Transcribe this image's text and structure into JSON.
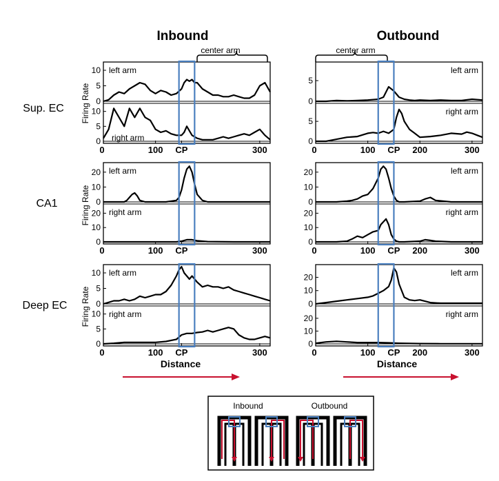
{
  "colors": {
    "trace": "#000000",
    "cp_box": "#4a7fbf",
    "arrow": "#c8102e",
    "path": "#c8102e",
    "maze": "#000000"
  },
  "columns": [
    {
      "title": "Inbound",
      "center_label": "center arm"
    },
    {
      "title": "Outbound",
      "center_label": "center arm"
    }
  ],
  "rows": [
    "Sup. EC",
    "CA1",
    "Deep EC"
  ],
  "y_axis_label": "Firing Rate",
  "x_axis_label": "Distance",
  "panel_labels": {
    "left": "left arm",
    "right": "right arm"
  },
  "x_ticks": [
    "0",
    "100",
    "CP",
    "200",
    "300"
  ],
  "inset": {
    "left_label": "Inbound",
    "right_label": "Outbound"
  },
  "chart_data": [
    {
      "type": "line",
      "row": "Sup. EC",
      "column": "Inbound",
      "xlim": [
        0,
        320
      ],
      "cp_box_x": [
        145,
        175
      ],
      "x_ticks": [
        0,
        100,
        150,
        300
      ],
      "subplots": [
        {
          "name": "left arm",
          "ylim": [
            0,
            12
          ],
          "yticks": [
            0,
            5,
            10
          ],
          "x": [
            0,
            10,
            20,
            30,
            40,
            50,
            60,
            70,
            80,
            90,
            100,
            110,
            120,
            130,
            140,
            150,
            155,
            160,
            165,
            170,
            175,
            180,
            190,
            200,
            210,
            220,
            230,
            240,
            250,
            260,
            270,
            280,
            290,
            300,
            310,
            320
          ],
          "y": [
            0,
            0.5,
            2,
            3,
            2.5,
            4,
            5,
            6,
            5.5,
            3.5,
            2.5,
            3.5,
            3,
            2,
            2.5,
            4,
            6,
            7,
            6.5,
            7,
            6,
            6,
            4,
            3,
            2,
            2,
            1.5,
            1.5,
            2,
            1.5,
            1,
            1,
            2,
            5,
            6,
            3
          ]
        },
        {
          "name": "right arm",
          "ylim": [
            0,
            12
          ],
          "yticks": [
            0,
            5,
            10
          ],
          "x": [
            0,
            10,
            20,
            30,
            40,
            50,
            60,
            70,
            80,
            90,
            100,
            110,
            120,
            130,
            140,
            150,
            155,
            160,
            170,
            180,
            190,
            200,
            210,
            220,
            230,
            240,
            250,
            260,
            270,
            280,
            290,
            300,
            310,
            320
          ],
          "y": [
            1,
            4,
            11,
            8,
            5,
            11,
            8,
            11,
            8,
            7,
            4,
            3,
            3.5,
            2.5,
            2,
            2,
            3,
            5,
            2,
            1,
            0.5,
            0.5,
            0.5,
            1,
            1.5,
            1,
            1.5,
            2,
            2.5,
            2,
            3,
            4,
            2,
            0.5
          ]
        }
      ]
    },
    {
      "type": "line",
      "row": "Sup. EC",
      "column": "Outbound",
      "xlim": [
        0,
        320
      ],
      "cp_box_x": [
        120,
        150
      ],
      "x_ticks": [
        0,
        100,
        150,
        200,
        300
      ],
      "subplots": [
        {
          "name": "left arm",
          "ylim": [
            0,
            9
          ],
          "yticks": [
            0,
            5
          ],
          "x": [
            0,
            20,
            40,
            60,
            80,
            100,
            120,
            130,
            140,
            150,
            160,
            170,
            180,
            190,
            200,
            220,
            240,
            260,
            280,
            300,
            320
          ],
          "y": [
            0,
            0,
            0.2,
            0.1,
            0.2,
            0.3,
            0.5,
            1,
            3.5,
            2.5,
            1,
            0.5,
            0.3,
            0.2,
            0.3,
            0.2,
            0.3,
            0.2,
            0.2,
            0.5,
            0.3
          ]
        },
        {
          "name": "right arm",
          "ylim": [
            0,
            9
          ],
          "yticks": [
            0,
            5
          ],
          "x": [
            0,
            20,
            40,
            60,
            80,
            100,
            110,
            120,
            130,
            140,
            150,
            155,
            160,
            165,
            170,
            180,
            190,
            200,
            220,
            240,
            260,
            280,
            290,
            300,
            310,
            320
          ],
          "y": [
            0,
            0,
            0.5,
            1,
            1.2,
            2,
            2.2,
            2,
            2.5,
            2,
            3,
            6,
            8,
            7,
            5,
            3,
            2,
            1,
            1.2,
            1.5,
            2,
            1.8,
            2.3,
            2,
            1.5,
            1
          ]
        }
      ]
    },
    {
      "type": "line",
      "row": "CA1",
      "column": "Inbound",
      "xlim": [
        0,
        320
      ],
      "cp_box_x": [
        145,
        175
      ],
      "x_ticks": [
        0,
        100,
        150,
        300
      ],
      "subplots": [
        {
          "name": "left arm",
          "ylim": [
            0,
            25
          ],
          "yticks": [
            0,
            10,
            20
          ],
          "x": [
            0,
            30,
            40,
            45,
            50,
            55,
            60,
            65,
            70,
            80,
            100,
            120,
            140,
            145,
            150,
            155,
            160,
            165,
            170,
            175,
            180,
            190,
            200,
            250,
            300,
            320
          ],
          "y": [
            0,
            0,
            0,
            1,
            3,
            5,
            6,
            4,
            1,
            0,
            0,
            0,
            1,
            3,
            8,
            16,
            22,
            24,
            20,
            12,
            5,
            1,
            0,
            0,
            0,
            0
          ]
        },
        {
          "name": "right arm",
          "ylim": [
            0,
            25
          ],
          "yticks": [
            0,
            10,
            20
          ],
          "x": [
            0,
            50,
            100,
            140,
            150,
            160,
            170,
            180,
            200,
            250,
            300,
            320
          ],
          "y": [
            0,
            0,
            0,
            0,
            0.5,
            1.5,
            1.5,
            0.8,
            0.2,
            0,
            0,
            0
          ]
        }
      ]
    },
    {
      "type": "line",
      "row": "CA1",
      "column": "Outbound",
      "xlim": [
        0,
        320
      ],
      "cp_box_x": [
        120,
        150
      ],
      "x_ticks": [
        0,
        100,
        150,
        200,
        300
      ],
      "subplots": [
        {
          "name": "left arm",
          "ylim": [
            0,
            25
          ],
          "yticks": [
            0,
            10,
            20
          ],
          "x": [
            0,
            40,
            60,
            70,
            80,
            90,
            100,
            110,
            120,
            125,
            130,
            135,
            140,
            145,
            150,
            155,
            160,
            170,
            200,
            210,
            220,
            230,
            260,
            320
          ],
          "y": [
            0,
            0,
            0.5,
            1,
            2,
            4,
            5,
            9,
            16,
            22,
            24,
            22,
            16,
            9,
            4,
            1,
            0,
            0,
            0.5,
            2,
            3,
            1,
            0,
            0
          ]
        },
        {
          "name": "right arm",
          "ylim": [
            0,
            25
          ],
          "yticks": [
            0,
            10,
            20
          ],
          "x": [
            0,
            40,
            60,
            70,
            80,
            90,
            100,
            110,
            120,
            125,
            130,
            135,
            140,
            145,
            150,
            155,
            160,
            170,
            200,
            210,
            220,
            230,
            260,
            320
          ],
          "y": [
            0,
            0,
            0.5,
            2,
            4,
            3,
            5,
            7,
            8,
            12,
            14,
            16,
            12,
            5,
            2,
            0.5,
            0,
            0,
            0.5,
            1.5,
            1,
            0.5,
            0,
            0
          ]
        }
      ]
    },
    {
      "type": "line",
      "row": "Deep EC",
      "column": "Inbound",
      "xlim": [
        0,
        320
      ],
      "cp_box_x": [
        145,
        175
      ],
      "x_ticks": [
        0,
        100,
        150,
        300
      ],
      "subplots": [
        {
          "name": "left arm",
          "ylim": [
            0,
            12
          ],
          "yticks": [
            0,
            5,
            10
          ],
          "x": [
            0,
            10,
            20,
            30,
            40,
            50,
            60,
            70,
            80,
            90,
            100,
            110,
            120,
            130,
            140,
            145,
            150,
            155,
            160,
            165,
            170,
            180,
            190,
            200,
            210,
            220,
            230,
            240,
            250,
            260,
            270,
            280,
            290,
            300,
            310,
            320
          ],
          "y": [
            0,
            0.5,
            1,
            1,
            1.5,
            1,
            1.5,
            2.5,
            2,
            2.5,
            3,
            3,
            4,
            6,
            9,
            11,
            12,
            10,
            9,
            8,
            9,
            7,
            5.5,
            6,
            5.5,
            5.5,
            5,
            5.5,
            4.5,
            4,
            3.5,
            3,
            2.5,
            2,
            1.5,
            1
          ]
        },
        {
          "name": "right arm",
          "ylim": [
            0,
            12
          ],
          "yticks": [
            0,
            5,
            10
          ],
          "x": [
            0,
            20,
            40,
            60,
            80,
            100,
            120,
            140,
            150,
            160,
            170,
            180,
            190,
            200,
            210,
            220,
            230,
            240,
            250,
            260,
            270,
            280,
            290,
            300,
            310,
            320
          ],
          "y": [
            0,
            0.2,
            0.5,
            0.5,
            0.5,
            0.5,
            0.8,
            1.5,
            3,
            3.5,
            3.5,
            3.8,
            4,
            4.5,
            4,
            4.5,
            5,
            5.5,
            5,
            3,
            2,
            1.5,
            1.5,
            2,
            2.5,
            2
          ]
        }
      ]
    },
    {
      "type": "line",
      "row": "Deep EC",
      "column": "Outbound",
      "xlim": [
        0,
        320
      ],
      "cp_box_x": [
        120,
        150
      ],
      "x_ticks": [
        0,
        100,
        150,
        200,
        300
      ],
      "subplots": [
        {
          "name": "left arm",
          "ylim": [
            0,
            28
          ],
          "yticks": [
            0,
            10,
            20
          ],
          "x": [
            0,
            20,
            40,
            60,
            80,
            100,
            110,
            120,
            130,
            140,
            145,
            150,
            155,
            160,
            170,
            180,
            190,
            200,
            220,
            240,
            260,
            280,
            300,
            320
          ],
          "y": [
            0,
            1,
            2,
            3,
            4,
            5,
            6,
            8,
            10,
            13,
            18,
            27,
            24,
            15,
            5,
            3,
            2.5,
            3,
            1,
            0.5,
            0.5,
            0.5,
            0.5,
            0.5
          ]
        },
        {
          "name": "right arm",
          "ylim": [
            0,
            28
          ],
          "yticks": [
            0,
            10,
            20
          ],
          "x": [
            0,
            20,
            40,
            60,
            80,
            100,
            120,
            140,
            160,
            180,
            200,
            240,
            280,
            320
          ],
          "y": [
            0.5,
            1.5,
            2,
            1.5,
            1,
            1,
            1,
            0.8,
            0.5,
            0.3,
            0.2,
            0.1,
            0.1,
            0.1
          ]
        }
      ]
    }
  ]
}
